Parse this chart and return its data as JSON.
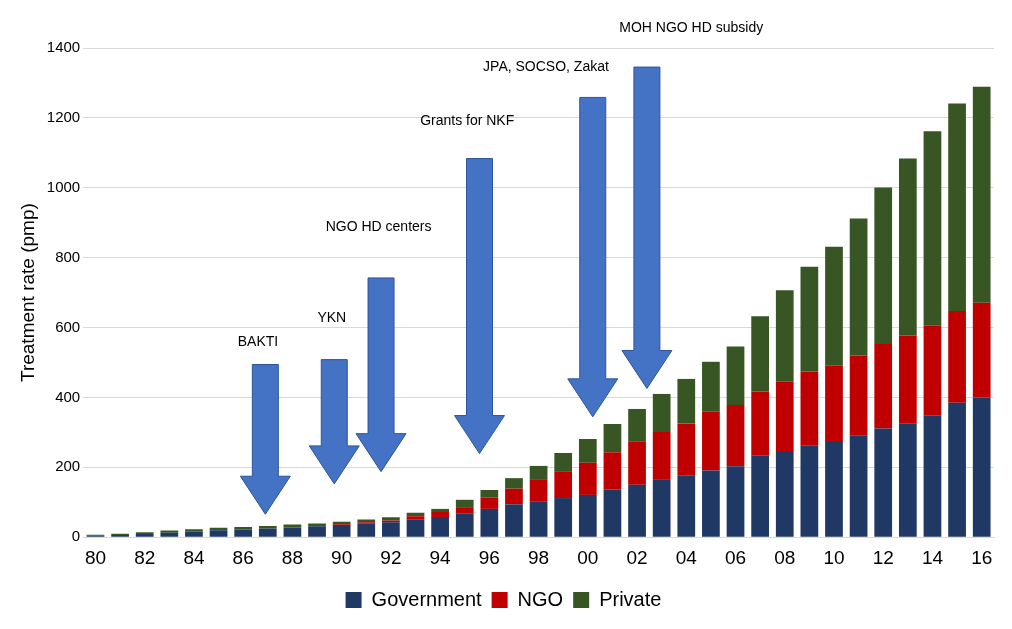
{
  "chart_data": {
    "type": "bar",
    "stacked": true,
    "ylabel": "Treatment rate (pmp)",
    "categories": [
      "80",
      null,
      "82",
      null,
      "84",
      null,
      "86",
      null,
      "88",
      null,
      "90",
      null,
      "92",
      null,
      "94",
      null,
      "96",
      null,
      "98",
      null,
      "00",
      null,
      "02",
      null,
      "04",
      null,
      "06",
      null,
      "08",
      null,
      "10",
      null,
      "12",
      null,
      "14",
      null,
      "16"
    ],
    "series": [
      {
        "name": "Government",
        "color": "#1f3864",
        "values": [
          4,
          6,
          9,
          13,
          16,
          20,
          22,
          25,
          28,
          31,
          35,
          40,
          43,
          50,
          55,
          67,
          81,
          94,
          103,
          112,
          121,
          136,
          150,
          164,
          177,
          191,
          203,
          233,
          247,
          263,
          275,
          292,
          311,
          326,
          349,
          385,
          400
        ]
      },
      {
        "name": "NGO",
        "color": "#c00000",
        "values": [
          0,
          0,
          0,
          0,
          0,
          0,
          0,
          0,
          0,
          0,
          2,
          3,
          5,
          10,
          17,
          19,
          32,
          45,
          61,
          75,
          92,
          107,
          123,
          137,
          148,
          168,
          175,
          184,
          198,
          211,
          216,
          228,
          242,
          251,
          256,
          262,
          271
        ]
      },
      {
        "name": "Private",
        "color": "#375623",
        "values": [
          3,
          4,
          5,
          6,
          7,
          7,
          7,
          7,
          8,
          8,
          7,
          8,
          9,
          10,
          9,
          21,
          22,
          30,
          40,
          54,
          68,
          81,
          94,
          109,
          128,
          143,
          168,
          215,
          262,
          300,
          340,
          392,
          448,
          507,
          557,
          594,
          618
        ]
      }
    ],
    "ylim": [
      0,
      1400
    ],
    "yticks": [
      0,
      200,
      400,
      600,
      800,
      1000,
      1200,
      1400
    ],
    "grid": "y",
    "legend": "bottom",
    "annotations": [
      "BAKTI",
      "YKN",
      "NGO HD centers",
      "Grants for NKF",
      "JPA, SOCSO, Zakat",
      "MOH NGO HD subsidy"
    ]
  }
}
